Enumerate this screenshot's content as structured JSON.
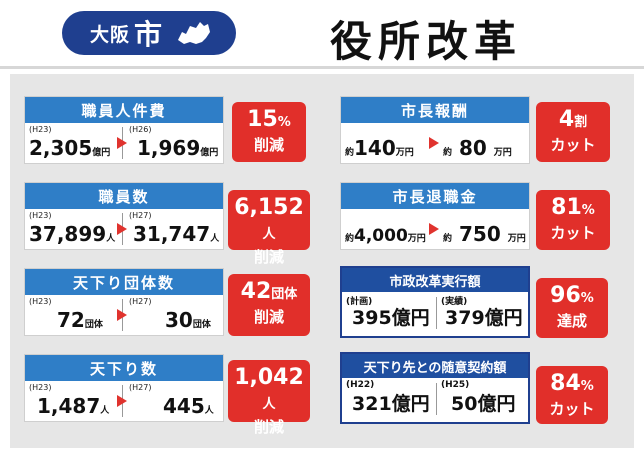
{
  "header": {
    "city": "大阪",
    "city_suffix": "市",
    "title": "役所改革",
    "brand_color": "#1f3f8f"
  },
  "left": [
    {
      "heading": "職員人件費",
      "before_tag": "(H23)",
      "before_value": "2,305",
      "before_unit": "億円",
      "after_tag": "(H26)",
      "after_value": "1,969",
      "after_unit": "億円",
      "result_big": "15",
      "result_big_unit": "%",
      "result_sub": "削減"
    },
    {
      "heading": "職員数",
      "before_tag": "(H23)",
      "before_value": "37,899",
      "before_unit": "人",
      "after_tag": "(H27)",
      "after_value": "31,747",
      "after_unit": "人",
      "result_big": "6,152",
      "result_big_unit": "人",
      "result_sub": "削減"
    },
    {
      "heading": "天下り団体数",
      "before_tag": "(H23)",
      "before_value": "72",
      "before_unit": "団体",
      "after_tag": "(H27)",
      "after_value": "30",
      "after_unit": "団体",
      "result_big": "42",
      "result_big_unit": "団体",
      "result_sub": "削減"
    },
    {
      "heading": "天下り数",
      "before_tag": "(H23)",
      "before_value": "1,487",
      "before_unit": "人",
      "after_tag": "(H27)",
      "after_value": "445",
      "after_unit": "人",
      "result_big": "1,042",
      "result_big_unit": "人",
      "result_sub": "削減"
    }
  ],
  "right_simple": [
    {
      "heading": "市長報酬",
      "before_prefix": "約",
      "before_value": "140",
      "before_unit": "万円",
      "after_prefix": "約",
      "after_value": "80",
      "after_unit": "万円",
      "result_big": "4",
      "result_big_unit": "割",
      "result_sub": "カット"
    },
    {
      "heading": "市長退職金",
      "before_prefix": "約",
      "before_value": "4,000",
      "before_unit": "万円",
      "after_prefix": "約",
      "after_value": "750",
      "after_unit": "万円",
      "result_big": "81",
      "result_big_unit": "%",
      "result_sub": "カット"
    }
  ],
  "right_boxed": [
    {
      "heading": "市政改革実行額",
      "left_tag": "(計画)",
      "left_value": "395億円",
      "right_tag": "(実績)",
      "right_value": "379億円",
      "result_big": "96",
      "result_big_unit": "%",
      "result_sub": "達成"
    },
    {
      "heading": "天下り先との随意契約額",
      "left_tag": "(H22)",
      "left_value": "321億円",
      "right_tag": "(H25)",
      "right_value": "50億円",
      "result_big": "84",
      "result_big_unit": "%",
      "result_sub": "カット"
    }
  ],
  "colors": {
    "blue_header": "#2f7ec7",
    "red": "#e12f2a",
    "panel": "#e6e6e6"
  }
}
